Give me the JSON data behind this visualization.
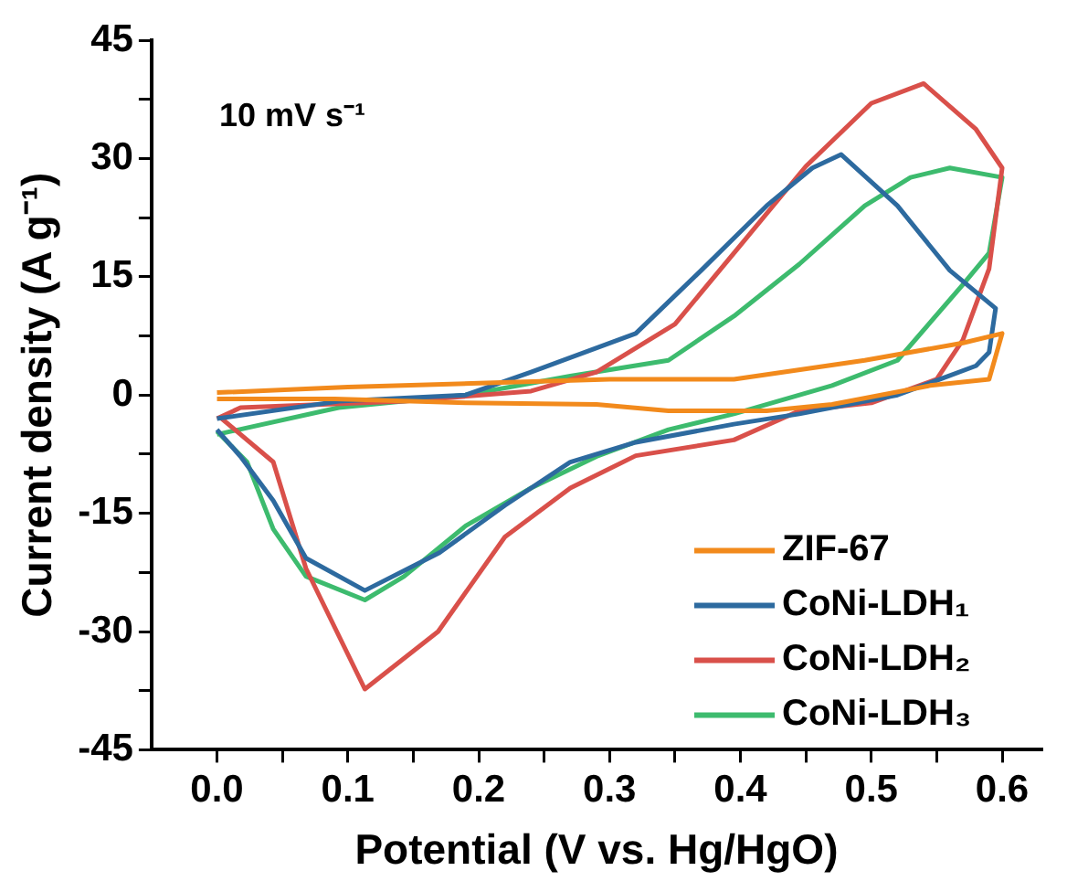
{
  "chart_data": {
    "type": "line",
    "xlabel": "Potential (V vs. Hg/HgO)",
    "ylabel": "Current density (A g⁻¹)",
    "annotations": [
      "10 mV s⁻¹"
    ],
    "xlim": [
      -0.05,
      0.63
    ],
    "xticks": [
      {
        "value": 0,
        "label": "0.0"
      },
      0.1,
      0.2,
      0.3,
      0.4,
      0.5,
      0.6
    ],
    "ylim": [
      -45,
      45
    ],
    "yticks": [
      -45,
      -30,
      -15,
      0,
      15,
      30,
      45
    ],
    "grid": false,
    "legend": "bottom right",
    "marker": "none",
    "line_style": "solid",
    "series": [
      {
        "name": "ZIF-67",
        "color": "#f28a1c",
        "x": [
          0,
          0.1,
          0.2,
          0.3,
          0.395,
          0.495,
          0.57,
          0.6,
          0.59,
          0.545,
          0.47,
          0.42,
          0.345,
          0.29,
          0.19,
          0.09,
          0
        ],
        "values": [
          0.3,
          1,
          1.5,
          2,
          2,
          4.4,
          6.6,
          7.8,
          2,
          1.2,
          -1.2,
          -2,
          -2,
          -1.2,
          -1,
          -0.5,
          -0.5
        ]
      },
      {
        "name": "CoNi-LDH₁",
        "color": "#2d6a9f",
        "x": [
          0,
          0.093,
          0.19,
          0.24,
          0.32,
          0.37,
          0.42,
          0.455,
          0.477,
          0.52,
          0.56,
          0.595,
          0.59,
          0.58,
          0.52,
          0.445,
          0.395,
          0.32,
          0.27,
          0.22,
          0.17,
          0.113,
          0.068,
          0.043,
          0.018,
          0
        ],
        "values": [
          -3,
          -0.8,
          0,
          2.9,
          7.8,
          15.8,
          24,
          28.8,
          30.5,
          24,
          15.8,
          11,
          5.4,
          3.7,
          0,
          -2.4,
          -3.7,
          -6,
          -8.5,
          -14,
          -20,
          -24.8,
          -20.7,
          -13.4,
          -7.8,
          -4.4
        ]
      },
      {
        "name": "CoNi-LDH₂",
        "color": "#d9504a",
        "x": [
          0,
          0.018,
          0.143,
          0.24,
          0.29,
          0.35,
          0.4,
          0.45,
          0.5,
          0.54,
          0.58,
          0.6,
          0.59,
          0.57,
          0.55,
          0.5,
          0.445,
          0.395,
          0.32,
          0.27,
          0.22,
          0.169,
          0.113,
          0.068,
          0.043,
          0.003
        ],
        "values": [
          -3,
          -1.6,
          -0.8,
          0.5,
          2.9,
          9,
          19,
          29,
          37,
          39.5,
          33.7,
          28.8,
          16,
          7,
          2,
          -1,
          -2,
          -5.7,
          -7.7,
          -11.8,
          -18,
          -30,
          -37.3,
          -22,
          -8.5,
          -2.9
        ]
      },
      {
        "name": "CoNi-LDH₃",
        "color": "#3dbb6e",
        "x": [
          0,
          0.093,
          0.19,
          0.27,
          0.345,
          0.395,
          0.445,
          0.495,
          0.53,
          0.56,
          0.6,
          0.59,
          0.57,
          0.52,
          0.47,
          0.395,
          0.345,
          0.29,
          0.24,
          0.19,
          0.143,
          0.113,
          0.068,
          0.043,
          0.023,
          0
        ],
        "values": [
          -5,
          -1.6,
          0,
          2.4,
          4.4,
          10,
          16.6,
          24,
          27.6,
          28.8,
          27.6,
          18,
          14,
          4.4,
          1.2,
          -2.4,
          -4.4,
          -7.8,
          -11.8,
          -16.6,
          -23,
          -26,
          -23,
          -17,
          -8.5,
          -4.6
        ]
      }
    ]
  }
}
